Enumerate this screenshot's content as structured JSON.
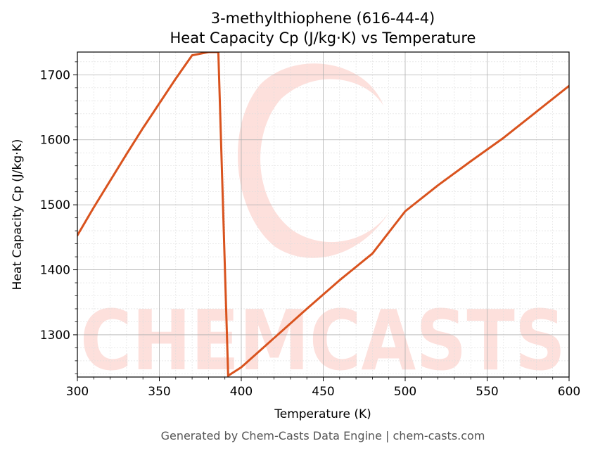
{
  "colors": {
    "line": "#d9531e",
    "grid_major": "#b0b0b0",
    "grid_minor": "#dddddd",
    "watermark": "#fde0dc"
  },
  "watermark": {
    "text": "CHEMCASTS"
  },
  "footer": "Generated by Chem-Casts Data Engine | chem-casts.com",
  "chart_data": {
    "type": "line",
    "title": "3-methylthiophene (616-44-4)",
    "subtitle": "Heat Capacity Cp (J/kg·K) vs Temperature",
    "xlabel": "Temperature (K)",
    "ylabel": "Heat Capacity Cp (J/kg·K)",
    "xlim": [
      300,
      600
    ],
    "ylim": [
      1235,
      1735
    ],
    "xticks": [
      300,
      350,
      400,
      450,
      500,
      550,
      600
    ],
    "yticks": [
      1300,
      1400,
      1500,
      1600,
      1700
    ],
    "grid": true,
    "series": [
      {
        "x": [
          300,
          310,
          320,
          330,
          340,
          350,
          360,
          370,
          380,
          386,
          392,
          400,
          420,
          440,
          460,
          480,
          500,
          520,
          540,
          560,
          580,
          600
        ],
        "y": [
          1453,
          1496,
          1537,
          1578,
          1618,
          1656,
          1694,
          1730,
          1735,
          1735,
          1237,
          1250,
          1295,
          1340,
          1384,
          1425,
          1490,
          1530,
          1567,
          1603,
          1643,
          1683
        ]
      }
    ]
  }
}
